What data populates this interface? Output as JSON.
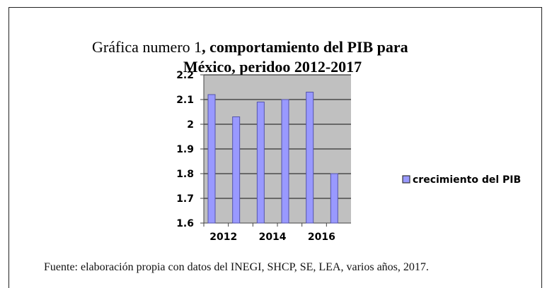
{
  "chart_data": {
    "type": "bar",
    "title": [
      "Gráfica numero 1",
      ", comportamiento del PIB para",
      "México, peridoo 2012-2017"
    ],
    "categories": [
      "2012",
      null,
      "2014",
      null,
      "2016",
      null
    ],
    "series": [
      {
        "name": "crecimiento del PIB",
        "color": "#9999ff",
        "values": [
          2.12,
          2.03,
          2.09,
          2.1,
          2.13,
          1.8
        ]
      }
    ],
    "ylim": [
      1.6,
      2.2
    ],
    "yticks": [
      1.6,
      1.7,
      1.8,
      1.9,
      2,
      2.1,
      2.2
    ],
    "grid": true,
    "legend": "right",
    "source": "Fuente: elaboración propia con datos del INEGI, SHCP, SE, LEA, varios años, 2017."
  }
}
